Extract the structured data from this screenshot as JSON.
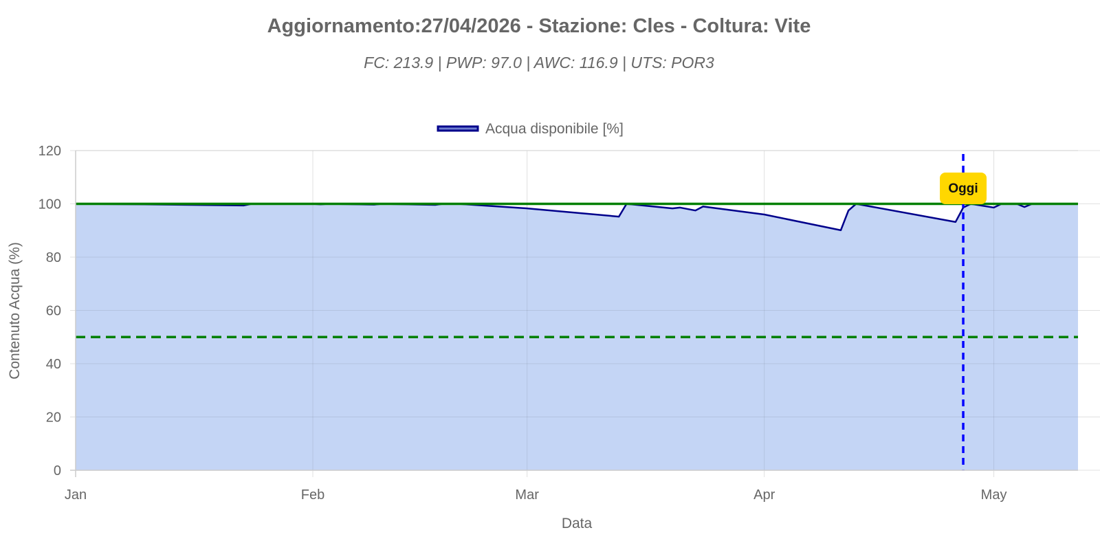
{
  "chart_data": {
    "type": "area",
    "title": "Aggiornamento:27/04/2026 - Stazione: Cles - Coltura: Vite",
    "subtitle": "FC: 213.9 | PWP: 97.0 | AWC: 116.9 | UTS: POR3",
    "xlabel": "Data",
    "ylabel": "Contenuto Acqua (%)",
    "ylim": [
      0,
      120
    ],
    "yticks": [
      0,
      20,
      40,
      60,
      80,
      100,
      120
    ],
    "xlim": [
      "2026-01-01",
      "2026-05-12"
    ],
    "xticks": [
      {
        "date": "2026-01-01",
        "label": "Jan"
      },
      {
        "date": "2026-02-01",
        "label": "Feb"
      },
      {
        "date": "2026-03-01",
        "label": "Mar"
      },
      {
        "date": "2026-04-01",
        "label": "Apr"
      },
      {
        "date": "2026-05-01",
        "label": "May"
      }
    ],
    "grid": true,
    "legend_position": "top-center",
    "series": [
      {
        "name": "Acqua disponibile [%]",
        "line_color": "#00008b",
        "fill_color": "#c2d4f5",
        "points": [
          [
            "2026-01-01",
            100
          ],
          [
            "2026-01-10",
            99.8
          ],
          [
            "2026-01-23",
            99.4
          ],
          [
            "2026-01-24",
            100
          ],
          [
            "2026-02-01",
            100
          ],
          [
            "2026-02-02",
            99.8
          ],
          [
            "2026-02-03",
            100
          ],
          [
            "2026-02-09",
            99.7
          ],
          [
            "2026-02-10",
            100
          ],
          [
            "2026-02-17",
            99.6
          ],
          [
            "2026-02-18",
            100
          ],
          [
            "2026-02-20",
            100
          ],
          [
            "2026-03-01",
            98.3
          ],
          [
            "2026-03-13",
            95.2
          ],
          [
            "2026-03-14",
            100
          ],
          [
            "2026-03-20",
            98.3
          ],
          [
            "2026-03-21",
            98.6
          ],
          [
            "2026-03-23",
            97.5
          ],
          [
            "2026-03-24",
            99.0
          ],
          [
            "2026-04-01",
            96.0
          ],
          [
            "2026-04-11",
            90.1
          ],
          [
            "2026-04-12",
            97.5
          ],
          [
            "2026-04-13",
            100
          ],
          [
            "2026-04-26",
            93.2
          ],
          [
            "2026-04-27",
            98.6
          ],
          [
            "2026-04-28",
            100
          ],
          [
            "2026-05-01",
            98.6
          ],
          [
            "2026-05-02",
            100
          ],
          [
            "2026-05-04",
            100
          ],
          [
            "2026-05-05",
            98.8
          ],
          [
            "2026-05-06",
            100
          ],
          [
            "2026-05-12",
            100
          ]
        ]
      }
    ],
    "reference_lines": [
      {
        "value": 100,
        "style": "solid",
        "color": "#008000"
      },
      {
        "value": 50,
        "style": "dashed",
        "color": "#008000"
      }
    ],
    "today_marker": {
      "date": "2026-04-27",
      "label": "Oggi",
      "line_color": "#0000ff",
      "badge_color": "#ffd700"
    }
  }
}
